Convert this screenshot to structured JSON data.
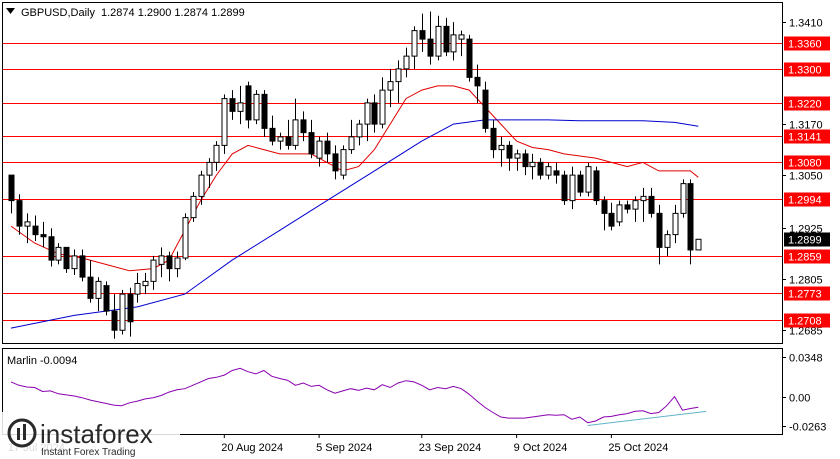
{
  "header": {
    "symbol_label": "GBPUSD,Daily",
    "ohlc": "1.2874 1.2900 1.2874 1.2899"
  },
  "colors": {
    "level_line": "#ff0000",
    "ma_fast": "#e00000",
    "ma_slow": "#0000d0",
    "oscillator": "#8a00b0",
    "trendline": "#5fb4c8",
    "current_price_bg": "#000000"
  },
  "chart_data": [
    {
      "type": "candlestick",
      "title": "GBPUSD,Daily",
      "ylim": [
        1.2655,
        1.3455
      ],
      "y_ticks": [
        "1.3410",
        "1.3170",
        "1.3050",
        "1.2925",
        "1.2805",
        "1.2685"
      ],
      "x_tick_labels": [
        {
          "label": "17 Jul 2024",
          "i": 0
        },
        {
          "label": "20 Aug 2024",
          "i": 27
        },
        {
          "label": "5 Sep 2024",
          "i": 39
        },
        {
          "label": "23 Sep 2024",
          "i": 52
        },
        {
          "label": "9 Oct 2024",
          "i": 64
        },
        {
          "label": "25 Oct 2024",
          "i": 76
        }
      ],
      "levels": [
        "1.3360",
        "1.3300",
        "1.3220",
        "1.3141",
        "1.3080",
        "1.2994",
        "1.2859",
        "1.2773",
        "1.2708"
      ],
      "current_price": "1.2899",
      "candles": [
        [
          1.305,
          1.305,
          1.296,
          1.299
        ],
        [
          1.299,
          1.3005,
          1.291,
          1.293
        ],
        [
          1.293,
          1.296,
          1.289,
          1.294
        ],
        [
          1.293,
          1.2955,
          1.2895,
          1.291
        ],
        [
          1.291,
          1.294,
          1.288,
          1.2905
        ],
        [
          1.2905,
          1.2925,
          1.2835,
          1.285
        ],
        [
          1.285,
          1.289,
          1.284,
          1.288
        ],
        [
          1.288,
          1.288,
          1.282,
          1.283
        ],
        [
          1.283,
          1.2875,
          1.2815,
          1.286
        ],
        [
          1.286,
          1.2875,
          1.28,
          1.281
        ],
        [
          1.281,
          1.285,
          1.275,
          1.276
        ],
        [
          1.276,
          1.281,
          1.273,
          1.28
        ],
        [
          1.279,
          1.28,
          1.272,
          1.273
        ],
        [
          1.273,
          1.277,
          1.2665,
          1.2685
        ],
        [
          1.2685,
          1.278,
          1.2675,
          1.277
        ],
        [
          1.277,
          1.2785,
          1.267,
          1.2705
        ],
        [
          1.277,
          1.282,
          1.275,
          1.2795
        ],
        [
          1.279,
          1.282,
          1.277,
          1.28
        ],
        [
          1.28,
          1.286,
          1.278,
          1.285
        ],
        [
          1.284,
          1.288,
          1.281,
          1.286
        ],
        [
          1.286,
          1.287,
          1.28,
          1.283
        ],
        [
          1.283,
          1.287,
          1.281,
          1.2855
        ],
        [
          1.2855,
          1.296,
          1.285,
          1.295
        ],
        [
          1.295,
          1.301,
          1.294,
          1.3
        ],
        [
          1.3,
          1.306,
          1.298,
          1.305
        ],
        [
          1.305,
          1.309,
          1.302,
          1.308
        ],
        [
          1.308,
          1.313,
          1.306,
          1.312
        ],
        [
          1.312,
          1.324,
          1.31,
          1.323
        ],
        [
          1.323,
          1.325,
          1.318,
          1.32
        ],
        [
          1.32,
          1.326,
          1.317,
          1.322
        ],
        [
          1.326,
          1.327,
          1.316,
          1.318
        ],
        [
          1.318,
          1.325,
          1.317,
          1.324
        ],
        [
          1.324,
          1.325,
          1.314,
          1.316
        ],
        [
          1.316,
          1.319,
          1.312,
          1.313
        ],
        [
          1.313,
          1.315,
          1.311,
          1.314
        ],
        [
          1.314,
          1.318,
          1.311,
          1.312
        ],
        [
          1.312,
          1.323,
          1.311,
          1.318
        ],
        [
          1.318,
          1.32,
          1.313,
          1.315
        ],
        [
          1.315,
          1.318,
          1.309,
          1.31
        ],
        [
          1.309,
          1.314,
          1.307,
          1.313
        ],
        [
          1.313,
          1.315,
          1.308,
          1.31
        ],
        [
          1.31,
          1.312,
          1.304,
          1.306
        ],
        [
          1.305,
          1.312,
          1.304,
          1.311
        ],
        [
          1.311,
          1.318,
          1.31,
          1.314
        ],
        [
          1.314,
          1.318,
          1.312,
          1.317
        ],
        [
          1.317,
          1.323,
          1.313,
          1.322
        ],
        [
          1.322,
          1.324,
          1.315,
          1.317
        ],
        [
          1.317,
          1.328,
          1.316,
          1.325
        ],
        [
          1.325,
          1.33,
          1.321,
          1.327
        ],
        [
          1.327,
          1.332,
          1.322,
          1.33
        ],
        [
          1.33,
          1.335,
          1.328,
          1.333
        ],
        [
          1.333,
          1.34,
          1.33,
          1.339
        ],
        [
          1.339,
          1.343,
          1.334,
          1.337
        ],
        [
          1.337,
          1.3435,
          1.331,
          1.333
        ],
        [
          1.333,
          1.3425,
          1.332,
          1.34
        ],
        [
          1.34,
          1.342,
          1.333,
          1.334
        ],
        [
          1.334,
          1.341,
          1.332,
          1.338
        ],
        [
          1.337,
          1.339,
          1.333,
          1.338
        ],
        [
          1.337,
          1.338,
          1.327,
          1.328
        ],
        [
          1.328,
          1.331,
          1.322,
          1.326
        ],
        [
          1.325,
          1.327,
          1.315,
          1.316
        ],
        [
          1.316,
          1.318,
          1.309,
          1.311
        ],
        [
          1.311,
          1.314,
          1.307,
          1.312
        ],
        [
          1.312,
          1.313,
          1.306,
          1.309
        ],
        [
          1.309,
          1.311,
          1.306,
          1.31
        ],
        [
          1.31,
          1.311,
          1.305,
          1.307
        ],
        [
          1.307,
          1.31,
          1.304,
          1.308
        ],
        [
          1.308,
          1.309,
          1.304,
          1.305
        ],
        [
          1.305,
          1.308,
          1.304,
          1.307
        ],
        [
          1.306,
          1.308,
          1.303,
          1.305
        ],
        [
          1.305,
          1.306,
          1.298,
          1.299
        ],
        [
          1.299,
          1.307,
          1.297,
          1.305
        ],
        [
          1.305,
          1.306,
          1.3,
          1.301
        ],
        [
          1.301,
          1.308,
          1.3,
          1.307
        ],
        [
          1.306,
          1.307,
          1.298,
          1.299
        ],
        [
          1.299,
          1.3,
          1.292,
          1.296
        ],
        [
          1.296,
          1.2985,
          1.292,
          1.293
        ],
        [
          1.294,
          1.299,
          1.293,
          1.298
        ],
        [
          1.298,
          1.299,
          1.296,
          1.297
        ],
        [
          1.297,
          1.3,
          1.294,
          1.299
        ],
        [
          1.299,
          1.302,
          1.294,
          1.3
        ],
        [
          1.3,
          1.302,
          1.295,
          1.296
        ],
        [
          1.296,
          1.298,
          1.284,
          1.288
        ],
        [
          1.288,
          1.292,
          1.286,
          1.291
        ],
        [
          1.291,
          1.298,
          1.289,
          1.296
        ],
        [
          1.296,
          1.304,
          1.295,
          1.303
        ],
        [
          1.303,
          1.304,
          1.284,
          1.2874
        ],
        [
          1.2874,
          1.29,
          1.2874,
          1.2899
        ]
      ],
      "ma_fast": [
        [
          0,
          1.293
        ],
        [
          3,
          1.289
        ],
        [
          6,
          1.2865
        ],
        [
          9,
          1.2855
        ],
        [
          12,
          1.284
        ],
        [
          15,
          1.2825
        ],
        [
          18,
          1.283
        ],
        [
          20,
          1.285
        ],
        [
          22,
          1.292
        ],
        [
          24,
          1.299
        ],
        [
          26,
          1.305
        ],
        [
          28,
          1.31
        ],
        [
          30,
          1.312
        ],
        [
          32,
          1.311
        ],
        [
          34,
          1.31
        ],
        [
          36,
          1.31
        ],
        [
          38,
          1.31
        ],
        [
          40,
          1.308
        ],
        [
          42,
          1.306
        ],
        [
          44,
          1.307
        ],
        [
          46,
          1.311
        ],
        [
          48,
          1.317
        ],
        [
          50,
          1.323
        ],
        [
          52,
          1.325
        ],
        [
          54,
          1.326
        ],
        [
          56,
          1.326
        ],
        [
          58,
          1.325
        ],
        [
          60,
          1.321
        ],
        [
          62,
          1.317
        ],
        [
          64,
          1.313
        ],
        [
          66,
          1.3115
        ],
        [
          68,
          1.311
        ],
        [
          70,
          1.31
        ],
        [
          72,
          1.3095
        ],
        [
          74,
          1.309
        ],
        [
          76,
          1.308
        ],
        [
          78,
          1.307
        ],
        [
          80,
          1.308
        ],
        [
          82,
          1.306
        ],
        [
          84,
          1.306
        ],
        [
          86,
          1.306
        ],
        [
          87,
          1.3045
        ]
      ],
      "ma_slow": [
        [
          0,
          1.269
        ],
        [
          8,
          1.272
        ],
        [
          16,
          1.274
        ],
        [
          22,
          1.277
        ],
        [
          28,
          1.285
        ],
        [
          34,
          1.292
        ],
        [
          40,
          1.299
        ],
        [
          46,
          1.306
        ],
        [
          52,
          1.313
        ],
        [
          56,
          1.317
        ],
        [
          60,
          1.318
        ],
        [
          64,
          1.318
        ],
        [
          68,
          1.318
        ],
        [
          72,
          1.3178
        ],
        [
          76,
          1.3178
        ],
        [
          80,
          1.3178
        ],
        [
          84,
          1.3174
        ],
        [
          87,
          1.3165
        ]
      ]
    },
    {
      "type": "line",
      "title": "Marlin -0.0094",
      "ylim": [
        -0.033,
        0.042
      ],
      "y_ticks": [
        "0.0348",
        "0.00",
        "-0.0263"
      ],
      "series": [
        {
          "values": [
            0.013,
            0.01,
            0.0085,
            0.008,
            0.0045,
            0.005,
            0.0025,
            0.0015,
            0.0005,
            -0.001,
            -0.003,
            -0.0045,
            -0.006,
            -0.0075,
            -0.008,
            -0.0055,
            -0.004,
            -0.002,
            -0.001,
            0.001,
            0.004,
            0.006,
            0.007,
            0.01,
            0.013,
            0.016,
            0.017,
            0.019,
            0.023,
            0.025,
            0.022,
            0.02,
            0.023,
            0.018,
            0.016,
            0.0145,
            0.01,
            0.012,
            0.009,
            0.01,
            0.006,
            0.003,
            0.005,
            0.007,
            0.0055,
            0.0075,
            0.006,
            0.0105,
            0.008,
            0.012,
            0.014,
            0.013,
            0.01,
            0.006,
            0.008,
            0.007,
            0.009,
            0.007,
            0.002,
            -0.004,
            -0.0095,
            -0.014,
            -0.018,
            -0.019,
            -0.019,
            -0.019,
            -0.018,
            -0.017,
            -0.016,
            -0.0165,
            -0.016,
            -0.02,
            -0.018,
            -0.023,
            -0.0215,
            -0.018,
            -0.0175,
            -0.016,
            -0.015,
            -0.013,
            -0.0125,
            -0.015,
            -0.014,
            -0.008,
            0.0,
            -0.012,
            -0.0105,
            -0.0094
          ]
        }
      ],
      "trendline": [
        [
          73,
          -0.0255
        ],
        [
          88,
          -0.013
        ]
      ]
    }
  ],
  "watermark": {
    "brand": "instaforex",
    "tagline": "Instant Forex Trading"
  }
}
